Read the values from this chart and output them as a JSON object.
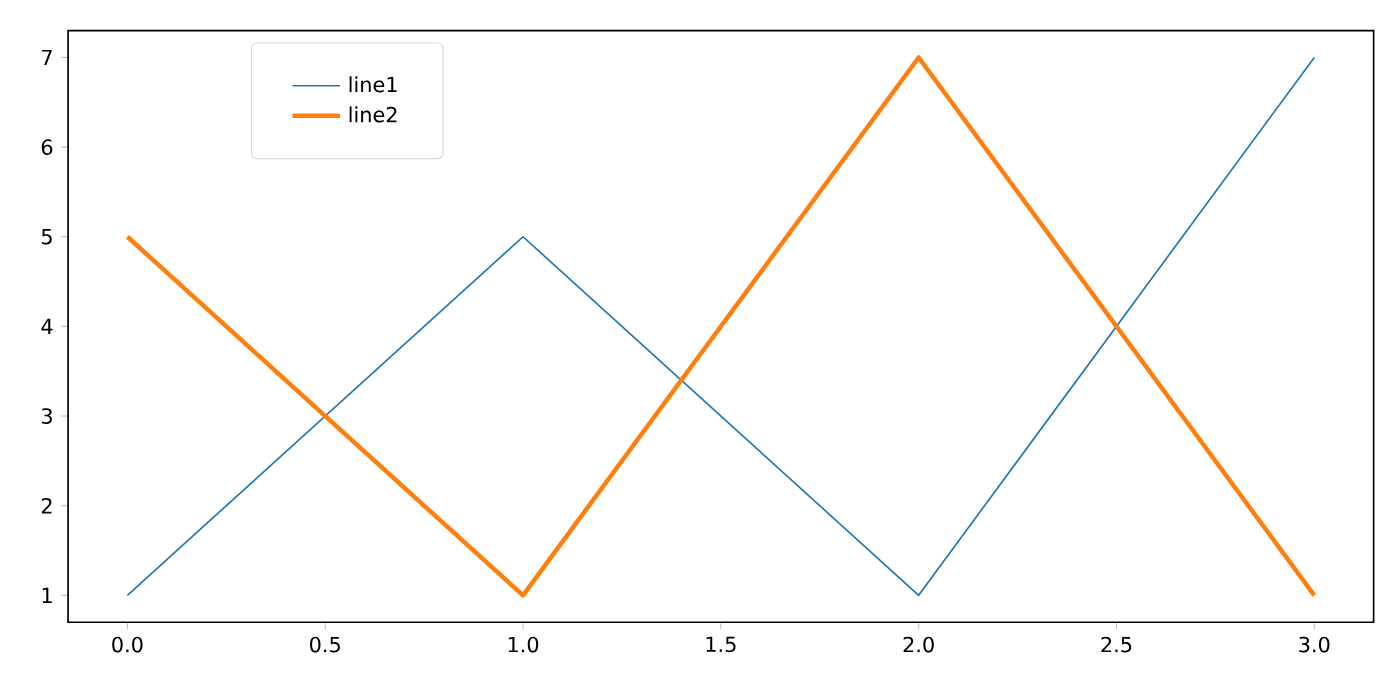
{
  "chart_data": {
    "type": "line",
    "x": [
      0,
      1,
      2,
      3
    ],
    "series": [
      {
        "name": "line1",
        "color": "#1f77b4",
        "values": [
          1,
          5,
          1,
          7
        ]
      },
      {
        "name": "line2",
        "color": "#ff7f0e",
        "values": [
          5,
          1,
          7,
          1
        ]
      }
    ],
    "xlim": [
      -0.15,
      3.15
    ],
    "ylim": [
      0.7,
      7.3
    ],
    "xticks": [
      {
        "value": 0,
        "label": "0.0"
      },
      {
        "value": 0.5,
        "label": "0.5"
      },
      {
        "value": 1,
        "label": "1.0"
      },
      {
        "value": 1.5,
        "label": "1.5"
      },
      {
        "value": 2,
        "label": "2.0"
      },
      {
        "value": 2.5,
        "label": "2.5"
      },
      {
        "value": 3,
        "label": "3.0"
      }
    ],
    "yticks": [
      1,
      2,
      3,
      4,
      5,
      6,
      7
    ],
    "legend": "top left",
    "grid": false,
    "marker": "none",
    "line_style": "solid"
  }
}
